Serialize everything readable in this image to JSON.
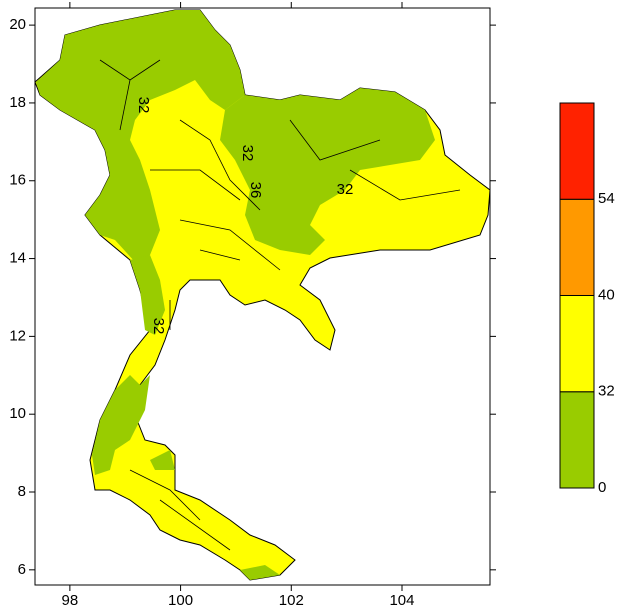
{
  "chart_data": {
    "type": "contour-map",
    "xlim": [
      97.37,
      105.59
    ],
    "ylim": [
      5.61,
      20.44
    ],
    "xticks": [
      98,
      100,
      102,
      104
    ],
    "yticks": [
      6,
      8,
      10,
      12,
      14,
      16,
      18,
      20
    ],
    "colorbar": {
      "levels": [
        0,
        32,
        40,
        54
      ],
      "colors": [
        "#99cc00",
        "#ffff00",
        "#ff9900",
        "#ff2200"
      ]
    },
    "contour_labels": [
      "32",
      "32",
      "36",
      "32",
      "32"
    ]
  }
}
